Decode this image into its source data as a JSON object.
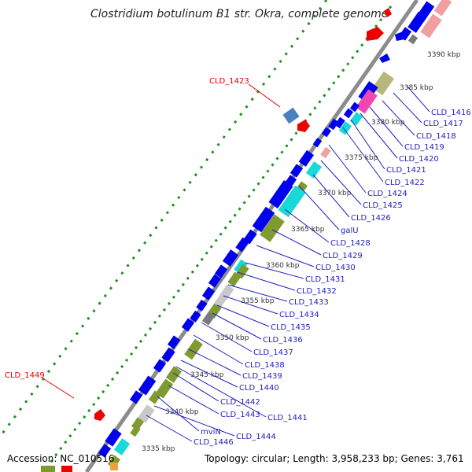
{
  "title": "Clostridium botulinum B1 str. Okra, complete genome",
  "footer": {
    "accession": "Accession: NC_010516",
    "summary": "Topology: circular; Length: 3,958,233 bp; Genes: 3,761"
  },
  "colors": {
    "backbone": "#8c8c8c",
    "cds": "#0000ee",
    "label_blue": "#1f1fbf",
    "label_red": "#e00000",
    "dots": "#1f8f1f",
    "olive": "#7f9a2f",
    "cyan": "#18d8d8",
    "pink": "#f0a0a0",
    "magenta": "#f048b0",
    "khaki": "#b7b77a",
    "gray": "#c8c8c8",
    "darkgray": "#7a7a7a",
    "steelblue": "#4a80c0",
    "red": "#ee0000"
  },
  "kbp_marks": [
    {
      "text": "3390 kbp"
    },
    {
      "text": "3385 kbp"
    },
    {
      "text": "3380 kbp"
    },
    {
      "text": "3375 kbp"
    },
    {
      "text": "3370 kbp"
    },
    {
      "text": "3365 kbp"
    },
    {
      "text": "3360 kbp"
    },
    {
      "text": "3355 kbp"
    },
    {
      "text": "3350 kbp"
    },
    {
      "text": "3345 kbp"
    },
    {
      "text": "3340 kbp"
    },
    {
      "text": "3335 kbp"
    }
  ],
  "gene_labels": [
    {
      "text": "CLD_1416",
      "color": "blue"
    },
    {
      "text": "CLD_1417",
      "color": "blue"
    },
    {
      "text": "CLD_1418",
      "color": "blue"
    },
    {
      "text": "CLD_1419",
      "color": "blue"
    },
    {
      "text": "CLD_1420",
      "color": "blue"
    },
    {
      "text": "CLD_1421",
      "color": "blue"
    },
    {
      "text": "CLD_1422",
      "color": "blue"
    },
    {
      "text": "CLD_1424",
      "color": "blue"
    },
    {
      "text": "CLD_1425",
      "color": "blue"
    },
    {
      "text": "CLD_1426",
      "color": "blue"
    },
    {
      "text": "galU",
      "color": "blue"
    },
    {
      "text": "CLD_1428",
      "color": "blue"
    },
    {
      "text": "CLD_1429",
      "color": "blue"
    },
    {
      "text": "CLD_1430",
      "color": "blue"
    },
    {
      "text": "CLD_1431",
      "color": "blue"
    },
    {
      "text": "CLD_1432",
      "color": "blue"
    },
    {
      "text": "CLD_1433",
      "color": "blue"
    },
    {
      "text": "CLD_1434",
      "color": "blue"
    },
    {
      "text": "CLD_1435",
      "color": "blue"
    },
    {
      "text": "CLD_1436",
      "color": "blue"
    },
    {
      "text": "CLD_1437",
      "color": "blue"
    },
    {
      "text": "CLD_1438",
      "color": "blue"
    },
    {
      "text": "CLD_1439",
      "color": "blue"
    },
    {
      "text": "CLD_1440",
      "color": "blue"
    },
    {
      "text": "CLD_1441",
      "color": "blue"
    },
    {
      "text": "CLD_1442",
      "color": "blue"
    },
    {
      "text": "CLD_1443",
      "color": "blue"
    },
    {
      "text": "mviN",
      "color": "blue"
    },
    {
      "text": "CLD_1444",
      "color": "blue"
    },
    {
      "text": "CLD_1446",
      "color": "blue"
    },
    {
      "text": "CLD_1423",
      "color": "red"
    },
    {
      "text": "CLD_1449",
      "color": "red"
    }
  ]
}
